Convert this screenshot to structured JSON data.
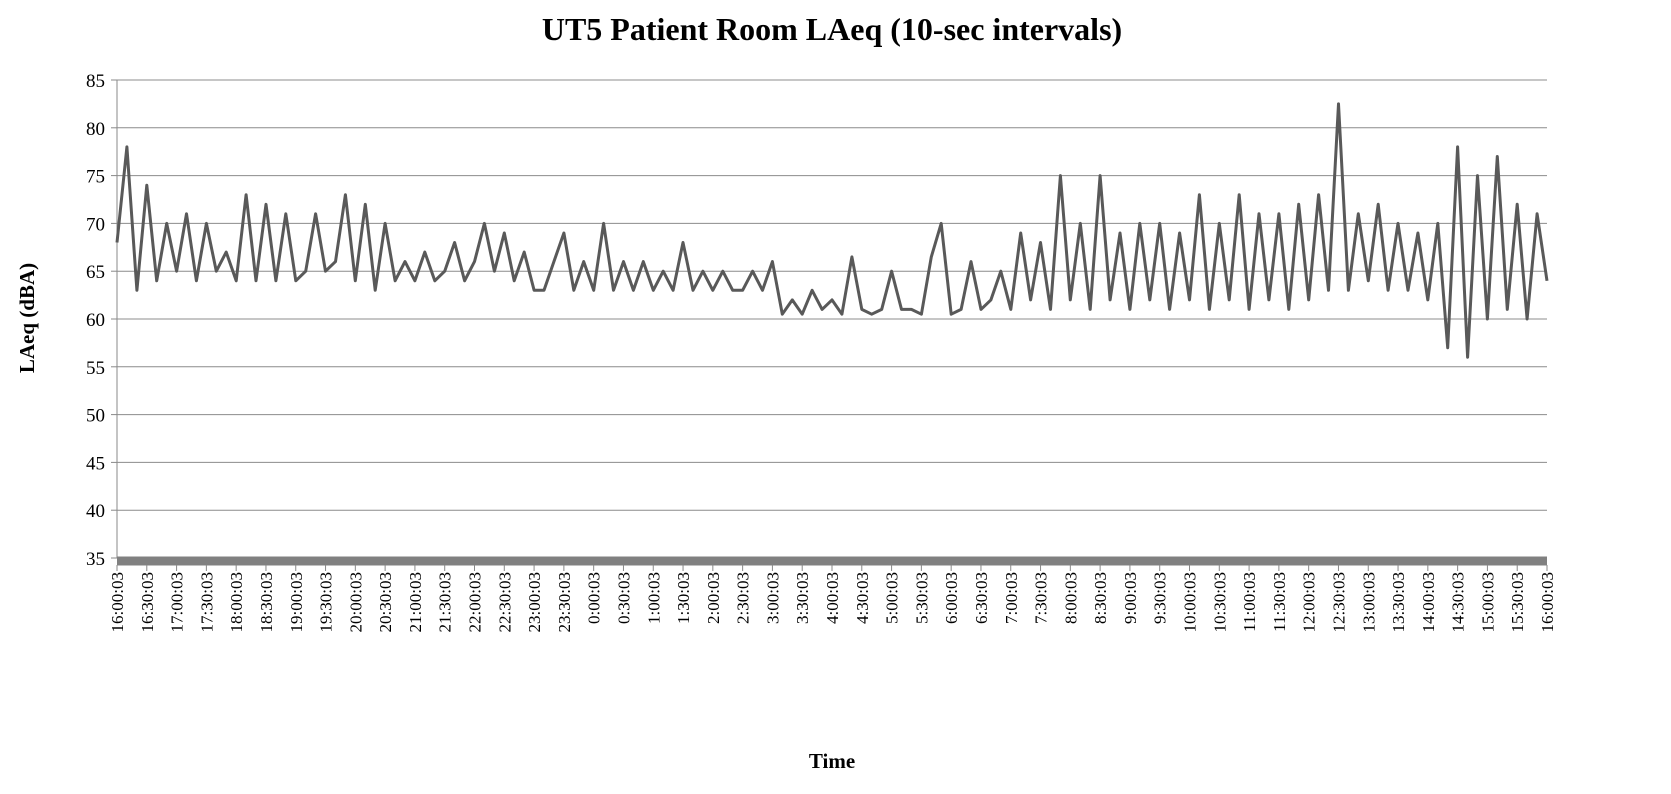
{
  "chart_data": {
    "type": "line",
    "title": "UT5 Patient Room LAeq (10-sec intervals)",
    "y_label": "LAeq (dBA)",
    "x_label": "Time",
    "categories": [
      "16:00:03",
      null,
      null,
      "16:30:03",
      null,
      null,
      "17:00:03",
      null,
      null,
      "17:30:03",
      null,
      null,
      "18:00:03",
      null,
      null,
      "18:30:03",
      null,
      null,
      "19:00:03",
      null,
      null,
      "19:30:03",
      null,
      null,
      "20:00:03",
      null,
      null,
      "20:30:03",
      null,
      null,
      "21:00:03",
      null,
      null,
      "21:30:03",
      null,
      null,
      "22:00:03",
      null,
      null,
      "22:30:03",
      null,
      null,
      "23:00:03",
      null,
      null,
      "23:30:03",
      null,
      null,
      "0:00:03",
      null,
      null,
      "0:30:03",
      null,
      null,
      "1:00:03",
      null,
      null,
      "1:30:03",
      null,
      null,
      "2:00:03",
      null,
      null,
      "2:30:03",
      null,
      null,
      "3:00:03",
      null,
      null,
      "3:30:03",
      null,
      null,
      "4:00:03",
      null,
      null,
      "4:30:03",
      null,
      null,
      "5:00:03",
      null,
      null,
      "5:30:03",
      null,
      null,
      "6:00:03",
      null,
      null,
      "6:30:03",
      null,
      null,
      "7:00:03",
      null,
      null,
      "7:30:03",
      null,
      null,
      "8:00:03",
      null,
      null,
      "8:30:03",
      null,
      null,
      "9:00:03",
      null,
      null,
      "9:30:03",
      null,
      null,
      "10:00:03",
      null,
      null,
      "10:30:03",
      null,
      null,
      "11:00:03",
      null,
      null,
      "11:30:03",
      null,
      null,
      "12:00:03",
      null,
      null,
      "12:30:03",
      null,
      null,
      "13:00:03",
      null,
      null,
      "13:30:03",
      null,
      null,
      "14:00:03",
      null,
      null,
      "14:30:03",
      null,
      null,
      "15:00:03",
      null,
      null,
      "15:30:03",
      null,
      null,
      "16:00:03"
    ],
    "series": [
      {
        "name": "LAeq",
        "color": "#595959",
        "values": [
          68,
          78,
          63,
          74,
          64,
          70,
          65,
          71,
          64,
          70,
          65,
          67,
          64,
          73,
          64,
          72,
          64,
          71,
          64,
          65,
          71,
          65,
          66,
          73,
          64,
          72,
          63,
          70,
          64,
          66,
          64,
          67,
          64,
          65,
          68,
          64,
          66,
          70,
          65,
          69,
          64,
          67,
          63,
          63,
          66,
          69,
          63,
          66,
          63,
          70,
          63,
          66,
          63,
          66,
          63,
          65,
          63,
          68,
          63,
          65,
          63,
          65,
          63,
          63,
          65,
          63,
          66,
          60.5,
          62,
          60.5,
          63,
          61,
          62,
          60.5,
          66.5,
          61,
          60.5,
          61,
          65,
          61,
          61,
          60.5,
          66.5,
          70,
          60.5,
          61,
          66,
          61,
          62,
          65,
          61,
          69,
          62,
          68,
          61,
          75,
          62,
          70,
          61,
          75,
          62,
          69,
          61,
          70,
          62,
          70,
          61,
          69,
          62,
          73,
          61,
          70,
          62,
          73,
          61,
          71,
          62,
          71,
          61,
          72,
          62,
          73,
          63,
          82.5,
          63,
          71,
          64,
          72,
          63,
          70,
          63,
          69,
          62,
          70,
          57,
          78,
          56,
          75,
          60,
          77,
          61,
          72,
          60,
          71,
          64
        ]
      }
    ],
    "ylim": [
      35,
      85
    ],
    "yticks": [
      35,
      40,
      45,
      50,
      55,
      60,
      65,
      70,
      75,
      80,
      85
    ],
    "grid": true
  }
}
